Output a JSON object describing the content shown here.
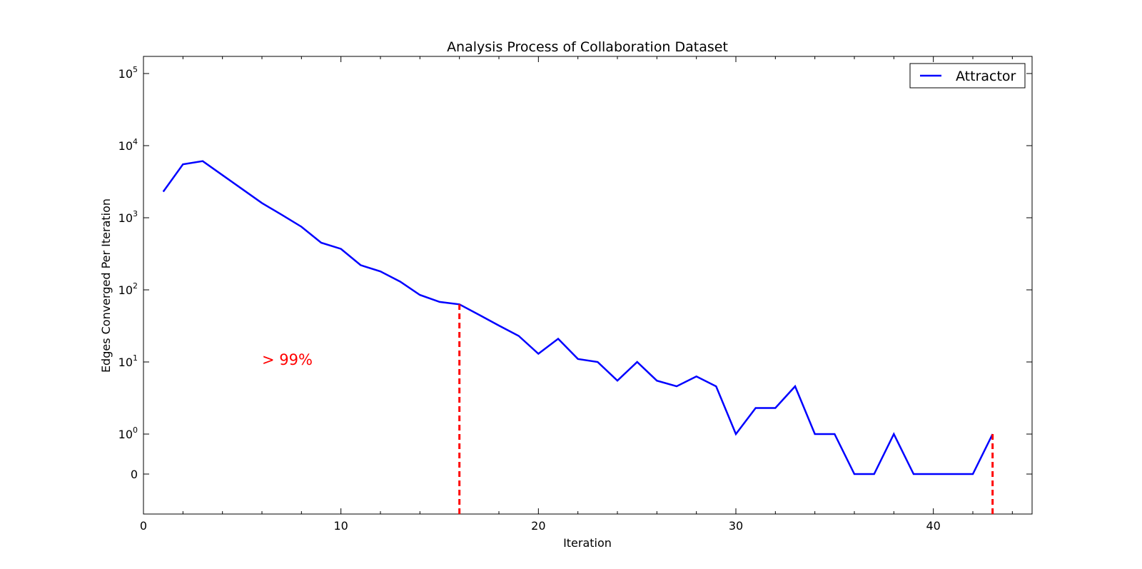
{
  "chart_data": {
    "type": "line",
    "title": "Analysis Process of Collaboration Dataset",
    "xlabel": "Iteration",
    "ylabel": "Edges Converged Per Iteration",
    "xlim": [
      0,
      45
    ],
    "yscale": "symlog",
    "grid": false,
    "legend_position": "top-right",
    "x_ticks": [
      {
        "value": 0,
        "label": "0"
      },
      {
        "value": 10,
        "label": "10"
      },
      {
        "value": 20,
        "label": "20"
      },
      {
        "value": 30,
        "label": "30"
      },
      {
        "value": 40,
        "label": "40"
      }
    ],
    "y_ticks": [
      {
        "value": 0,
        "base": "0",
        "exp": ""
      },
      {
        "value": 1,
        "base": "10",
        "exp": "0"
      },
      {
        "value": 10,
        "base": "10",
        "exp": "1"
      },
      {
        "value": 100,
        "base": "10",
        "exp": "2"
      },
      {
        "value": 1000,
        "base": "10",
        "exp": "3"
      },
      {
        "value": 10000,
        "base": "10",
        "exp": "4"
      },
      {
        "value": 100000,
        "base": "10",
        "exp": "5"
      }
    ],
    "series": [
      {
        "name": "Attractor",
        "color": "#0000ff",
        "x": [
          1,
          2,
          3,
          4,
          5,
          6,
          7,
          8,
          9,
          10,
          11,
          12,
          13,
          14,
          15,
          16,
          17,
          18,
          19,
          20,
          21,
          22,
          23,
          24,
          25,
          26,
          27,
          28,
          29,
          30,
          31,
          32,
          33,
          34,
          35,
          36,
          37,
          38,
          39,
          40,
          41,
          42,
          43
        ],
        "y": [
          2300,
          5500,
          6100,
          3900,
          2500,
          1600,
          1100,
          750,
          450,
          370,
          220,
          180,
          130,
          85,
          68,
          63,
          45,
          32,
          23,
          13,
          21,
          11,
          10,
          5.5,
          10,
          5.5,
          4.6,
          6.3,
          4.6,
          1,
          2.3,
          2.3,
          4.6,
          1,
          1,
          0,
          0,
          1,
          0,
          0,
          0,
          0,
          1
        ]
      }
    ],
    "vlines": [
      {
        "x": 16,
        "y": 63,
        "color": "#ff0000",
        "style": "dashed"
      },
      {
        "x": 43,
        "y": 1,
        "color": "#ff0000",
        "style": "dashed"
      }
    ],
    "annotations": [
      {
        "text": "> 99%",
        "x": 6,
        "y": 10,
        "color": "#ff0000"
      }
    ]
  }
}
